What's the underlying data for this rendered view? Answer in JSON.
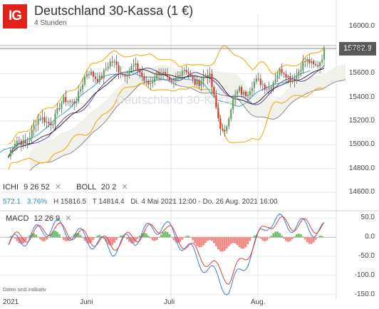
{
  "header": {
    "logo": "IG",
    "title": "Deutschland 30-Kassa (1 €)",
    "subtitle": "4 Stunden"
  },
  "indicators": [
    {
      "name": "ICHI",
      "params": "9  26  52"
    },
    {
      "name": "BOLL",
      "params": "20  2"
    }
  ],
  "info": {
    "change": "572.1",
    "change_pct": "3.76%",
    "high": "H 15816.5",
    "low": "T 14814.4",
    "range": "Di. 4 Mai 2021 12:00 - Do. 26 Aug. 2021 16:00"
  },
  "macd": {
    "name": "MACD",
    "params": "12  26  9"
  },
  "disclaimer": "Daten sind indikativ",
  "last_price": "15782.9",
  "watermark": "Deutschland 30-Kassa",
  "colors": {
    "bollinger": "#f0b321",
    "ichimoku_cloud": "#f1f1ec",
    "up": "#58a65c",
    "down": "#d93b36",
    "macd_line": "#3a7fd6",
    "signal_line": "#d9443b",
    "hist_pos": "#6fbf6f",
    "hist_neg": "#f08a86"
  },
  "chart_data": [
    {
      "type": "candlestick",
      "title": "Deutschland 30-Kassa (1 €)",
      "interval": "4 Stunden",
      "x": [
        "2021-05-04",
        "2021-05-15",
        "2021-06-01",
        "2021-06-15",
        "2021-07-01",
        "2021-07-15",
        "2021-08-01",
        "2021-08-15",
        "2021-08-26"
      ],
      "close_approx": [
        14900,
        15150,
        15550,
        15650,
        15550,
        15550,
        15450,
        15650,
        15782.9
      ],
      "high": 15816.5,
      "low": 14814.4,
      "last": 15782.9,
      "yticks": [
        "16000.0",
        "15800.0",
        "15600.0",
        "15400.0",
        "15200.0",
        "15000.0",
        "14800.0",
        "14600.0"
      ],
      "xticks": [
        "2021",
        "Juni",
        "Juli",
        "Aug."
      ],
      "ylim": [
        14540,
        16100
      ],
      "overlays": [
        "Ichimoku (9, 26, 52)",
        "Bollinger (20, 2)"
      ]
    },
    {
      "type": "line",
      "title": "MACD 12 26 9",
      "yticks": [
        "50.0",
        "0.0",
        "-50.0",
        "-100.0",
        "-150.0"
      ],
      "ylim": [
        -162,
        62
      ],
      "series": [
        {
          "name": "MACD",
          "x": [
            "2021-05-04",
            "2021-05-20",
            "2021-06-10",
            "2021-06-28",
            "2021-07-22",
            "2021-08-05",
            "2021-08-26"
          ],
          "values": [
            -20,
            30,
            -30,
            35,
            -140,
            45,
            15
          ]
        },
        {
          "name": "Signal",
          "x": [
            "2021-05-04",
            "2021-05-20",
            "2021-06-10",
            "2021-06-28",
            "2021-07-22",
            "2021-08-05",
            "2021-08-26"
          ],
          "values": [
            -10,
            25,
            -20,
            30,
            -110,
            40,
            25
          ]
        }
      ]
    }
  ]
}
